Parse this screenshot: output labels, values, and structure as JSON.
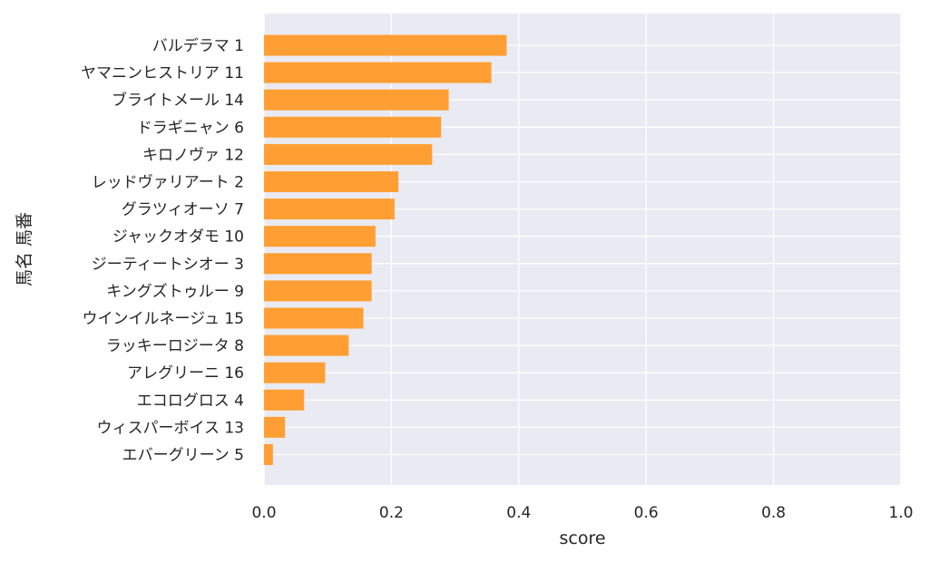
{
  "chart_data": {
    "type": "bar",
    "orientation": "horizontal",
    "categories": [
      "バルデラマ 1",
      "ヤマニンヒストリア 11",
      "ブライトメール 14",
      "ドラギニャン 6",
      "キロノヴァ 12",
      "レッドヴァリアート 2",
      "グラツィオーソ 7",
      "ジャックオダモ 10",
      "ジーティートシオー 3",
      "キングズトゥルー 9",
      "ウインイルネージュ 15",
      "ラッキーロジータ 8",
      "アレグリーニ 16",
      "エコログロス 4",
      "ウィスパーボイス 13",
      "エバーグリーン 5"
    ],
    "values": [
      0.381,
      0.357,
      0.29,
      0.278,
      0.264,
      0.211,
      0.205,
      0.175,
      0.169,
      0.169,
      0.156,
      0.133,
      0.096,
      0.063,
      0.033,
      0.014
    ],
    "xlabel": "score",
    "ylabel": "馬名 馬番",
    "xlim": [
      0,
      1.0
    ],
    "xticks": [
      "0.0",
      "0.2",
      "0.4",
      "0.6",
      "0.8",
      "1.0"
    ],
    "grid": true,
    "colors": {
      "bar": "#ff9f33",
      "plot_background": "#eaeaf2",
      "grid": "#ffffff",
      "text": "#262626"
    }
  }
}
